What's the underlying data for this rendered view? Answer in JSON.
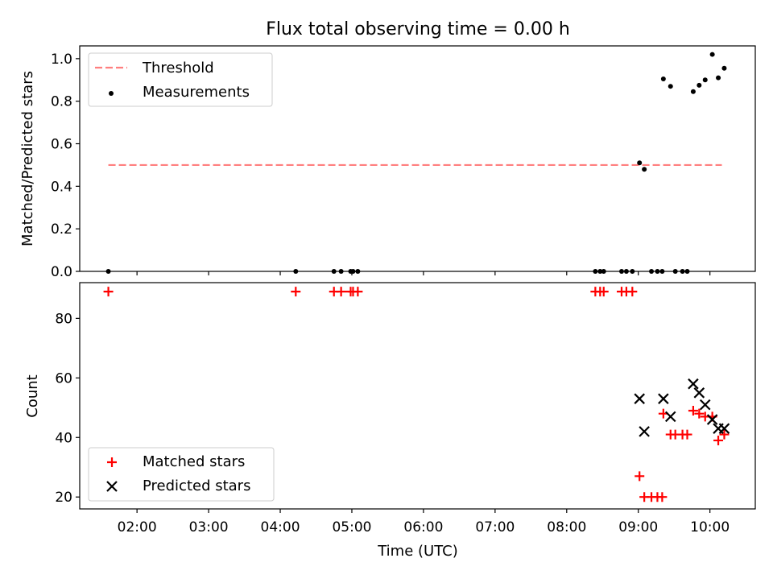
{
  "title": "Flux total observing time = 0.00 h",
  "chart_data": [
    {
      "type": "scatter",
      "ylabel": "Matched/Predicted stars",
      "ylim": [
        0,
        1.06
      ],
      "yticks": [
        "0.0",
        "0.2",
        "0.4",
        "0.6",
        "0.8",
        "1.0"
      ],
      "xlim": [
        "01:12",
        "10:38"
      ],
      "legend_position": "top-left",
      "threshold": {
        "name": "Threshold",
        "value": 0.5,
        "x_range": [
          "01:36",
          "10:10"
        ],
        "color": "#ff7f7f"
      },
      "series": [
        {
          "name": "Measurements",
          "color": "#000000",
          "points": [
            [
              "01:36",
              0
            ],
            [
              "04:13",
              0
            ],
            [
              "04:45",
              0
            ],
            [
              "04:51",
              0
            ],
            [
              "04:59",
              0
            ],
            [
              "05:01",
              0
            ],
            [
              "05:05",
              0
            ],
            [
              "08:24",
              0
            ],
            [
              "08:28",
              0
            ],
            [
              "08:31",
              0
            ],
            [
              "08:46",
              0
            ],
            [
              "08:50",
              0
            ],
            [
              "08:55",
              0
            ],
            [
              "09:01",
              0.51
            ],
            [
              "09:05",
              0.48
            ],
            [
              "09:11",
              0
            ],
            [
              "09:16",
              0
            ],
            [
              "09:20",
              0
            ],
            [
              "09:21",
              0.905
            ],
            [
              "09:27",
              0.87
            ],
            [
              "09:31",
              0
            ],
            [
              "09:37",
              0
            ],
            [
              "09:41",
              0
            ],
            [
              "09:46",
              0.845
            ],
            [
              "09:51",
              0.875
            ],
            [
              "09:56",
              0.9
            ],
            [
              "10:02",
              1.02
            ],
            [
              "10:07",
              0.91
            ],
            [
              "10:12",
              0.955
            ]
          ]
        }
      ]
    },
    {
      "type": "scatter",
      "xlabel": "Time (UTC)",
      "ylabel": "Count",
      "ylim": [
        16,
        92
      ],
      "yticks": [
        "20",
        "40",
        "60",
        "80"
      ],
      "xticks": [
        "02:00",
        "03:00",
        "04:00",
        "05:00",
        "06:00",
        "07:00",
        "08:00",
        "09:00",
        "10:00"
      ],
      "xlim": [
        "01:12",
        "10:38"
      ],
      "legend_position": "bottom-left",
      "series": [
        {
          "name": "Matched stars",
          "color": "#ff0000",
          "marker": "plus",
          "points": [
            [
              "01:36",
              89
            ],
            [
              "04:13",
              89
            ],
            [
              "04:45",
              89
            ],
            [
              "04:51",
              89
            ],
            [
              "04:59",
              89
            ],
            [
              "05:01",
              89
            ],
            [
              "05:05",
              89
            ],
            [
              "08:24",
              89
            ],
            [
              "08:28",
              89
            ],
            [
              "08:31",
              89
            ],
            [
              "08:46",
              89
            ],
            [
              "08:50",
              89
            ],
            [
              "08:55",
              89
            ],
            [
              "09:01",
              27
            ],
            [
              "09:05",
              20
            ],
            [
              "09:11",
              20
            ],
            [
              "09:16",
              20
            ],
            [
              "09:20",
              20
            ],
            [
              "09:21",
              48
            ],
            [
              "09:27",
              41
            ],
            [
              "09:31",
              41
            ],
            [
              "09:37",
              41
            ],
            [
              "09:41",
              41
            ],
            [
              "09:46",
              49
            ],
            [
              "09:51",
              48
            ],
            [
              "09:56",
              47
            ],
            [
              "10:02",
              47
            ],
            [
              "10:07",
              39
            ],
            [
              "10:12",
              41
            ]
          ]
        },
        {
          "name": "Predicted stars",
          "color": "#000000",
          "marker": "x",
          "points": [
            [
              "09:01",
              53
            ],
            [
              "09:05",
              42
            ],
            [
              "09:21",
              53
            ],
            [
              "09:27",
              47
            ],
            [
              "09:46",
              58
            ],
            [
              "09:51",
              55
            ],
            [
              "09:56",
              51
            ],
            [
              "10:02",
              46
            ],
            [
              "10:07",
              43
            ],
            [
              "10:12",
              43
            ]
          ]
        }
      ]
    }
  ]
}
